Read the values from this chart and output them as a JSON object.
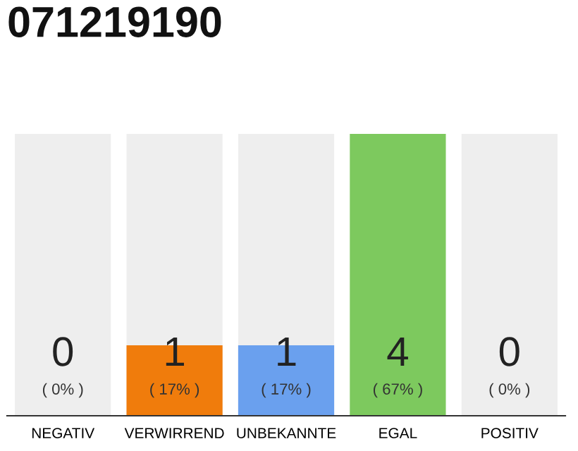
{
  "chart_data": {
    "type": "bar",
    "title": "071219190",
    "categories": [
      "NEGATIV",
      "VERWIRREND",
      "UNBEKANNTE",
      "EGAL",
      "POSITIV"
    ],
    "values": [
      0,
      1,
      1,
      4,
      0
    ],
    "colors": [
      "#f07c0c",
      "#f07c0c",
      "#6aa0ee",
      "#7dc95e",
      "#7dc95e"
    ],
    "ylim": [
      0,
      4
    ],
    "value_labels": [
      "0\n( 0% )",
      "1\n( 17% )",
      "1\n( 17% )",
      "4\n( 67% )",
      "0\n( 0% )"
    ],
    "bands": [
      {
        "axis": "x",
        "from": "NEGATIV",
        "to": "NEGATIV",
        "color": "#eeeeee"
      },
      {
        "axis": "x",
        "from": "VERWIRREND",
        "to": "VERWIRREND",
        "color": "#eeeeee"
      },
      {
        "axis": "x",
        "from": "UNBEKANNTE",
        "to": "UNBEKANNTE",
        "color": "#eeeeee"
      },
      {
        "axis": "x",
        "from": "POSITIV",
        "to": "POSITIV",
        "color": "#eeeeee"
      }
    ],
    "grid": false,
    "legend": false
  }
}
